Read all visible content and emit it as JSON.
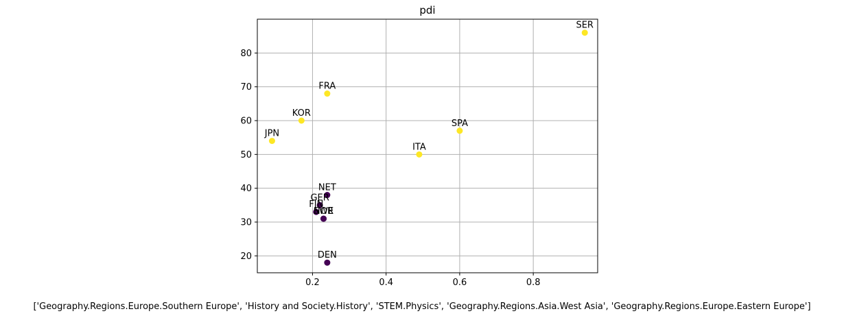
{
  "chart_data": {
    "type": "scatter",
    "title": "pdi",
    "xlabel": "['Geography.Regions.Europe.Southern Europe', 'History and Society.History', 'STEM.Physics', 'Geography.Regions.Asia.West Asia', 'Geography.Regions.Europe.Eastern Europe']",
    "ylabel": "",
    "xlim": [
      0.05,
      0.975
    ],
    "ylim": [
      15,
      90
    ],
    "xticks": [
      0.2,
      0.4,
      0.6,
      0.8
    ],
    "xtick_labels": [
      "0.2",
      "0.4",
      "0.6",
      "0.8"
    ],
    "yticks": [
      20,
      30,
      40,
      50,
      60,
      70,
      80
    ],
    "ytick_labels": [
      "20",
      "30",
      "40",
      "50",
      "60",
      "70",
      "80"
    ],
    "grid": true,
    "legend": "none",
    "colors": {
      "group_a": "#fde725",
      "group_b": "#440154"
    },
    "points": [
      {
        "label": "SER",
        "x": 0.94,
        "y": 86,
        "group": "group_a"
      },
      {
        "label": "FRA",
        "x": 0.24,
        "y": 68,
        "group": "group_a"
      },
      {
        "label": "KOR",
        "x": 0.17,
        "y": 60,
        "group": "group_a"
      },
      {
        "label": "SPA",
        "x": 0.6,
        "y": 57,
        "group": "group_a"
      },
      {
        "label": "JPN",
        "x": 0.09,
        "y": 54,
        "group": "group_a"
      },
      {
        "label": "ITA",
        "x": 0.49,
        "y": 50,
        "group": "group_a"
      },
      {
        "label": "NET",
        "x": 0.24,
        "y": 38,
        "group": "group_b"
      },
      {
        "label": "GER",
        "x": 0.22,
        "y": 35,
        "group": "group_b"
      },
      {
        "label": "FIN",
        "x": 0.21,
        "y": 33,
        "group": "group_b"
      },
      {
        "label": "NOR",
        "x": 0.23,
        "y": 31,
        "group": "group_b"
      },
      {
        "label": "SWE",
        "x": 0.23,
        "y": 31,
        "group": "group_b"
      },
      {
        "label": "DEN",
        "x": 0.24,
        "y": 18,
        "group": "group_b"
      }
    ]
  }
}
